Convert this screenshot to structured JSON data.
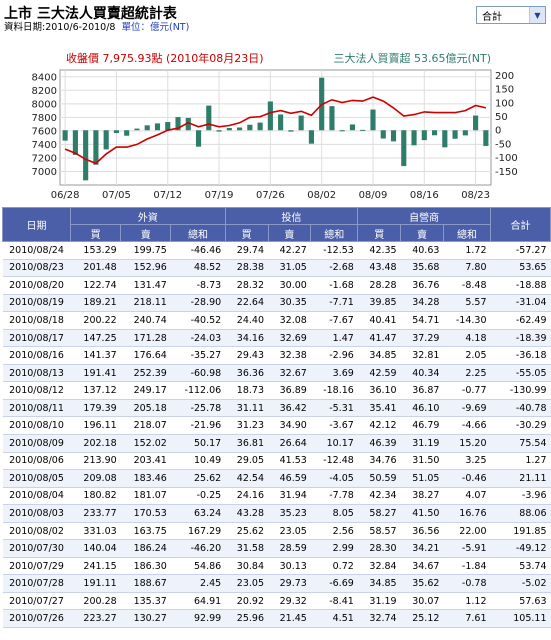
{
  "header": {
    "title": "上市 三大法人買賣超統計表",
    "date_range": "資料日期:2010/6-2010/8",
    "unit": "單位：億元(NT)"
  },
  "selector": {
    "value": "合計"
  },
  "chart_data": {
    "type": "bar+line",
    "left_legend": "收盤價 7,975.93點 (2010年08月23日)",
    "right_legend": "三大法人買賣超 53.65億元(NT)",
    "left_axis": {
      "ylim": [
        6800,
        8500
      ],
      "ticks": [
        "8400",
        "8200",
        "8000",
        "7800",
        "7600",
        "7400",
        "7200",
        "7000"
      ]
    },
    "right_axis": {
      "ylim": [
        -200,
        220
      ],
      "ticks": [
        "200",
        "150",
        "100",
        "50",
        "0",
        "-50",
        "-100",
        "-150"
      ]
    },
    "x_tick_labels": [
      "06/28",
      "07/05",
      "07/12",
      "07/19",
      "07/26",
      "08/02",
      "08/09",
      "08/16",
      "08/23"
    ],
    "x_tick_index": [
      0,
      5,
      10,
      15,
      20,
      25,
      30,
      35,
      40
    ],
    "dates": [
      "06/28",
      "06/29",
      "06/30",
      "07/01",
      "07/02",
      "07/05",
      "07/06",
      "07/07",
      "07/08",
      "07/09",
      "07/12",
      "07/13",
      "07/14",
      "07/15",
      "07/16",
      "07/19",
      "07/20",
      "07/21",
      "07/22",
      "07/23",
      "07/26",
      "07/27",
      "07/28",
      "07/29",
      "07/30",
      "08/02",
      "08/03",
      "08/04",
      "08/05",
      "08/06",
      "08/09",
      "08/10",
      "08/11",
      "08/12",
      "08/13",
      "08/16",
      "08/17",
      "08/18",
      "08/19",
      "08/20",
      "08/23",
      "08/24"
    ],
    "net_buy": [
      -38,
      -90,
      -183,
      -126,
      -70,
      -10,
      -20,
      6,
      18,
      25,
      30,
      48,
      45,
      -60,
      90,
      -5,
      8,
      10,
      20,
      28,
      105.11,
      57.63,
      -5.02,
      53.74,
      -49.12,
      191.85,
      88.06,
      -3.96,
      21.11,
      1.27,
      75.54,
      -30.29,
      -40.78,
      -130.99,
      -55.05,
      -36.18,
      -18.39,
      -62.49,
      -31.04,
      -18.88,
      53.65,
      -57.27
    ],
    "close": [
      7330,
      7270,
      7180,
      7120,
      7260,
      7360,
      7360,
      7400,
      7480,
      7540,
      7610,
      7640,
      7720,
      7660,
      7700,
      7660,
      7680,
      7720,
      7800,
      7810,
      7870,
      7900,
      7860,
      7890,
      7830,
      7990,
      8060,
      8020,
      8050,
      8040,
      8100,
      8040,
      7940,
      7820,
      7840,
      7880,
      7870,
      7870,
      7870,
      7900,
      7975.93,
      7940
    ]
  },
  "table": {
    "group_headers": [
      "日期",
      "外資",
      "投信",
      "自營商",
      "合計"
    ],
    "sub_headers": [
      "買",
      "賣",
      "總和",
      "買",
      "賣",
      "總和",
      "買",
      "賣",
      "總和"
    ],
    "rows": [
      [
        "2010/08/24",
        "153.29",
        "199.75",
        "-46.46",
        "29.74",
        "42.27",
        "-12.53",
        "42.35",
        "40.63",
        "1.72",
        "-57.27"
      ],
      [
        "2010/08/23",
        "201.48",
        "152.96",
        "48.52",
        "28.38",
        "31.05",
        "-2.68",
        "43.48",
        "35.68",
        "7.80",
        "53.65"
      ],
      [
        "2010/08/20",
        "122.74",
        "131.47",
        "-8.73",
        "28.32",
        "30.00",
        "-1.68",
        "28.28",
        "36.76",
        "-8.48",
        "-18.88"
      ],
      [
        "2010/08/19",
        "189.21",
        "218.11",
        "-28.90",
        "22.64",
        "30.35",
        "-7.71",
        "39.85",
        "34.28",
        "5.57",
        "-31.04"
      ],
      [
        "2010/08/18",
        "200.22",
        "240.74",
        "-40.52",
        "24.40",
        "32.08",
        "-7.67",
        "40.41",
        "54.71",
        "-14.30",
        "-62.49"
      ],
      [
        "2010/08/17",
        "147.25",
        "171.28",
        "-24.03",
        "34.16",
        "32.69",
        "1.47",
        "41.47",
        "37.29",
        "4.18",
        "-18.39"
      ],
      [
        "2010/08/16",
        "141.37",
        "176.64",
        "-35.27",
        "29.43",
        "32.38",
        "-2.96",
        "34.85",
        "32.81",
        "2.05",
        "-36.18"
      ],
      [
        "2010/08/13",
        "191.41",
        "252.39",
        "-60.98",
        "36.36",
        "32.67",
        "3.69",
        "42.59",
        "40.34",
        "2.25",
        "-55.05"
      ],
      [
        "2010/08/12",
        "137.12",
        "249.17",
        "-112.06",
        "18.73",
        "36.89",
        "-18.16",
        "36.10",
        "36.87",
        "-0.77",
        "-130.99"
      ],
      [
        "2010/08/11",
        "179.39",
        "205.18",
        "-25.78",
        "31.11",
        "36.42",
        "-5.31",
        "35.41",
        "46.10",
        "-9.69",
        "-40.78"
      ],
      [
        "2010/08/10",
        "196.11",
        "218.07",
        "-21.96",
        "31.23",
        "34.90",
        "-3.67",
        "42.12",
        "46.79",
        "-4.66",
        "-30.29"
      ],
      [
        "2010/08/09",
        "202.18",
        "152.02",
        "50.17",
        "36.81",
        "26.64",
        "10.17",
        "46.39",
        "31.19",
        "15.20",
        "75.54"
      ],
      [
        "2010/08/06",
        "213.90",
        "203.41",
        "10.49",
        "29.05",
        "41.53",
        "-12.48",
        "34.76",
        "31.50",
        "3.25",
        "1.27"
      ],
      [
        "2010/08/05",
        "209.08",
        "183.46",
        "25.62",
        "42.54",
        "46.59",
        "-4.05",
        "50.59",
        "51.05",
        "-0.46",
        "21.11"
      ],
      [
        "2010/08/04",
        "180.82",
        "181.07",
        "-0.25",
        "24.16",
        "31.94",
        "-7.78",
        "42.34",
        "38.27",
        "4.07",
        "-3.96"
      ],
      [
        "2010/08/03",
        "233.77",
        "170.53",
        "63.24",
        "43.28",
        "35.23",
        "8.05",
        "58.27",
        "41.50",
        "16.76",
        "88.06"
      ],
      [
        "2010/08/02",
        "331.03",
        "163.75",
        "167.29",
        "25.62",
        "23.05",
        "2.56",
        "58.57",
        "36.56",
        "22.00",
        "191.85"
      ],
      [
        "2010/07/30",
        "140.04",
        "186.24",
        "-46.20",
        "31.58",
        "28.59",
        "2.99",
        "28.30",
        "34.21",
        "-5.91",
        "-49.12"
      ],
      [
        "2010/07/29",
        "241.15",
        "186.30",
        "54.86",
        "30.84",
        "30.13",
        "0.72",
        "32.84",
        "34.67",
        "-1.84",
        "53.74"
      ],
      [
        "2010/07/28",
        "191.11",
        "188.67",
        "2.45",
        "23.05",
        "29.73",
        "-6.69",
        "34.85",
        "35.62",
        "-0.78",
        "-5.02"
      ],
      [
        "2010/07/27",
        "200.28",
        "135.37",
        "64.91",
        "20.92",
        "29.32",
        "-8.41",
        "31.19",
        "30.07",
        "1.12",
        "57.63"
      ],
      [
        "2010/07/26",
        "223.27",
        "130.27",
        "92.99",
        "25.96",
        "21.45",
        "4.51",
        "32.74",
        "25.12",
        "7.61",
        "105.11"
      ]
    ]
  },
  "colors": {
    "price_line": "#cc0000",
    "bar": "#2e7d6b",
    "legend_left": "#cc0000",
    "legend_right": "#2e7d6b",
    "header_bg": "#4a5fa8"
  }
}
